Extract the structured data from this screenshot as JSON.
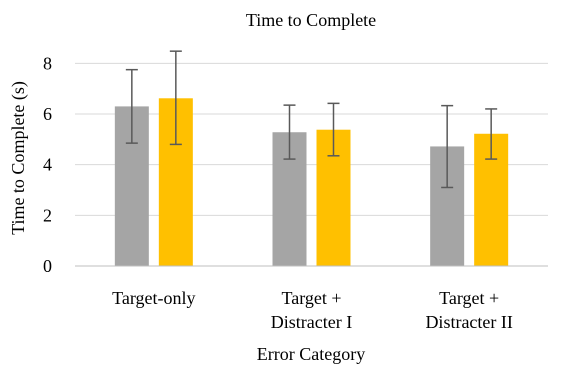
{
  "chart_data": {
    "type": "bar",
    "title": "Time to Complete",
    "xlabel": "Error Category",
    "ylabel": "Time to Complete (s)",
    "ylim": [
      0,
      9
    ],
    "yticks": [
      0,
      2,
      4,
      6,
      8
    ],
    "grid": true,
    "legend": "none",
    "categories": [
      [
        "Target-only"
      ],
      [
        "Target +",
        "Distracter  I"
      ],
      [
        "Target +",
        "Distracter  II"
      ]
    ],
    "series": [
      {
        "color": "#a5a5a5",
        "values": [
          6.3,
          5.28,
          4.72
        ],
        "error_low": [
          4.85,
          4.22,
          3.1
        ],
        "error_high": [
          7.75,
          6.35,
          6.33
        ]
      },
      {
        "color": "#ffc000",
        "values": [
          6.62,
          5.38,
          5.22
        ],
        "error_low": [
          4.8,
          4.35,
          4.22
        ],
        "error_high": [
          8.48,
          6.42,
          6.2
        ]
      }
    ]
  }
}
